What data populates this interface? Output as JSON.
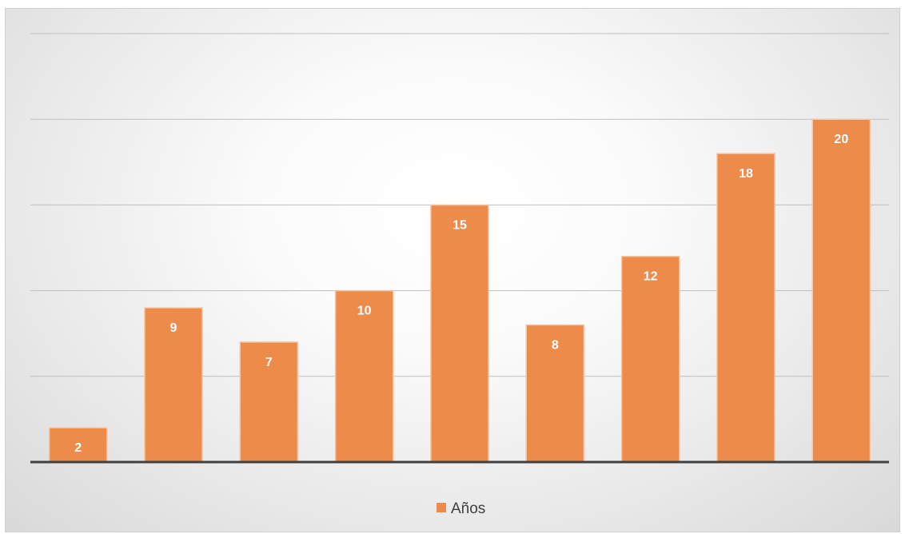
{
  "chart_data": {
    "type": "bar",
    "categories": [
      "",
      "",
      "",
      "",
      "",
      "",
      "",
      "",
      ""
    ],
    "series": [
      {
        "name": "Años",
        "values": [
          2,
          9,
          7,
          10,
          15,
          8,
          12,
          18,
          20
        ]
      }
    ],
    "title": "",
    "xlabel": "",
    "ylabel": "",
    "ylim": [
      0,
      25
    ],
    "grid": true,
    "legend": "bottom",
    "colors": {
      "bar": "#ED8B4A",
      "bar_edge": "#F6C7A6",
      "gridline": "#BFBFBF",
      "axis": "#404040",
      "label": "#FFFFFF",
      "legend_text": "#404040"
    }
  }
}
